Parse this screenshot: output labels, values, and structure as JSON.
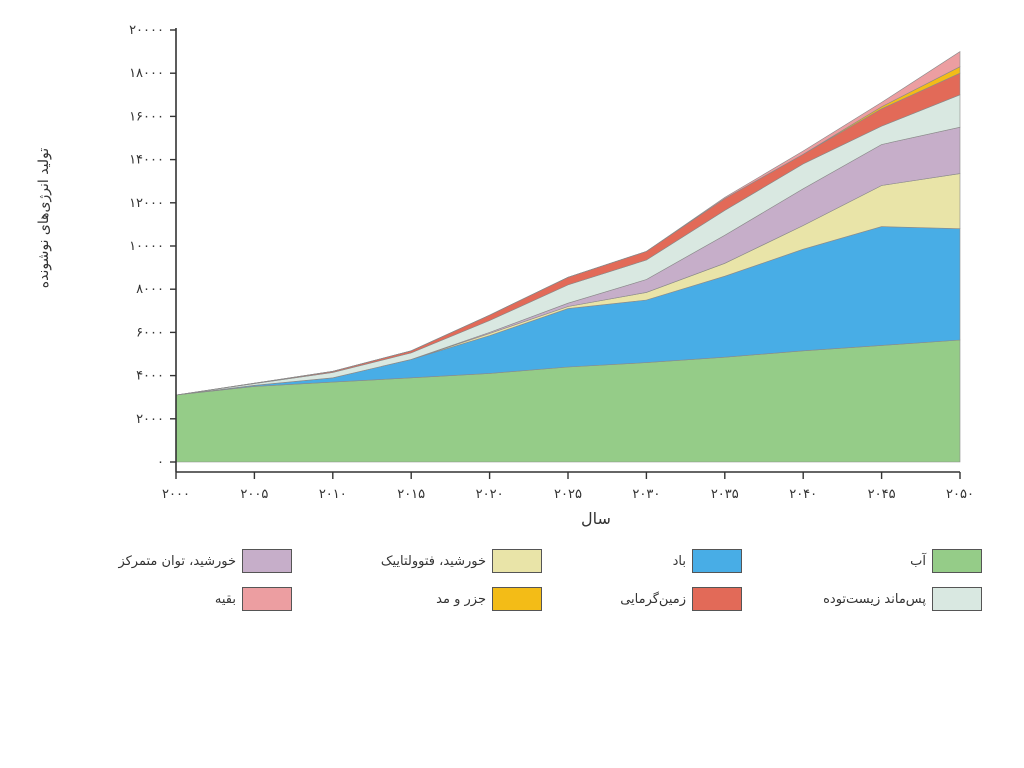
{
  "chart_data": {
    "type": "area",
    "stacked": true,
    "ylabel": "تولید انرژی‌های نوشونده",
    "xlabel": "سال",
    "x": [
      2000,
      2005,
      2010,
      2015,
      2020,
      2025,
      2030,
      2035,
      2040,
      2045,
      2050
    ],
    "xtick_labels": [
      "۲۰۰۰",
      "۲۰۰۵",
      "۲۰۱۰",
      "۲۰۱۵",
      "۲۰۲۰",
      "۲۰۲۵",
      "۲۰۳۰",
      "۲۰۳۵",
      "۲۰۴۰",
      "۲۰۴۵",
      "۲۰۵۰"
    ],
    "ytick_values": [
      0,
      2000,
      4000,
      6000,
      8000,
      10000,
      12000,
      14000,
      16000,
      18000,
      20000
    ],
    "ytick_labels": [
      "۰",
      "۲۰۰۰",
      "۴۰۰۰",
      "۶۰۰۰",
      "۸۰۰۰",
      "۱۰۰۰۰",
      "۱۲۰۰۰",
      "۱۴۰۰۰",
      "۱۶۰۰۰",
      "۱۸۰۰۰",
      "۲۰۰۰۰"
    ],
    "ylim": [
      0,
      20000
    ],
    "xlim": [
      2000,
      2050
    ],
    "grid": false,
    "legend_position": "bottom",
    "series": [
      {
        "name": "آب",
        "color": "#95cc88",
        "values": [
          3100,
          3500,
          3700,
          3900,
          4100,
          4400,
          4600,
          4850,
          5150,
          5400,
          5650
        ]
      },
      {
        "name": "باد",
        "color": "#48ade6",
        "values": [
          0,
          50,
          200,
          850,
          1750,
          2700,
          2900,
          3750,
          4700,
          5500,
          5150
        ]
      },
      {
        "name": "خورشید، فتوولتاییک",
        "color": "#e9e4a8",
        "values": [
          0,
          0,
          0,
          0,
          100,
          100,
          350,
          600,
          1100,
          1900,
          2550
        ]
      },
      {
        "name": "خورشید، توان متمرکز",
        "color": "#c6aec9",
        "values": [
          0,
          0,
          0,
          0,
          50,
          150,
          600,
          1300,
          1700,
          1900,
          2150
        ]
      },
      {
        "name": "پس‌ماند زیست‌توده",
        "color": "#d9e8e1",
        "values": [
          0,
          80,
          250,
          300,
          550,
          850,
          900,
          1150,
          1150,
          850,
          1500
        ]
      },
      {
        "name": "زمین‌گرمایی",
        "color": "#e26a58",
        "values": [
          0,
          20,
          50,
          100,
          250,
          350,
          400,
          550,
          450,
          800,
          1000
        ]
      },
      {
        "name": "جزر و مد",
        "color": "#f3bc17",
        "values": [
          0,
          0,
          0,
          0,
          0,
          0,
          0,
          0,
          0,
          100,
          300
        ]
      },
      {
        "name": "بقیه",
        "color": "#ec9ea1",
        "values": [
          0,
          0,
          0,
          0,
          0,
          0,
          0,
          50,
          150,
          200,
          700
        ]
      }
    ]
  }
}
